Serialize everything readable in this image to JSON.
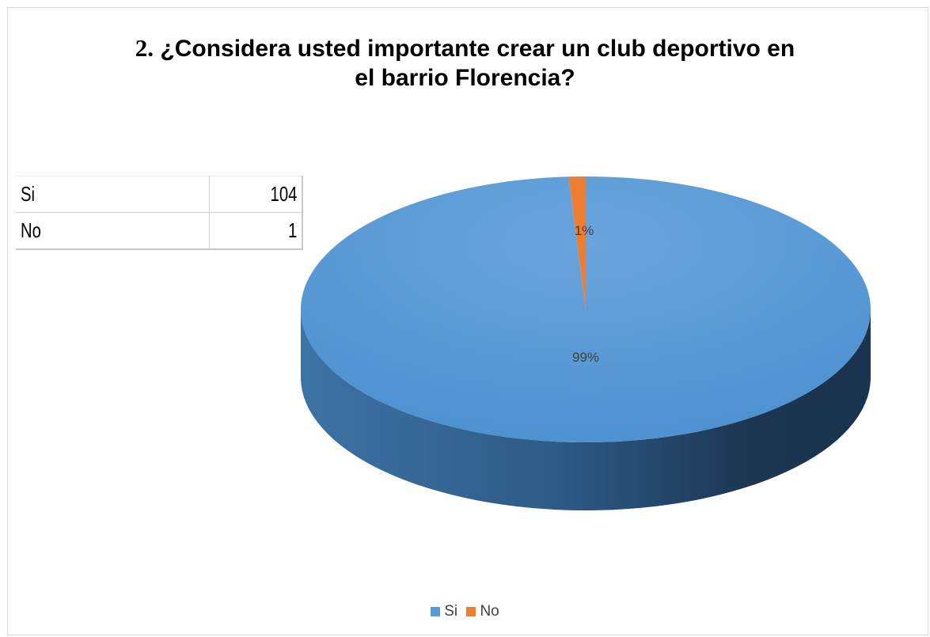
{
  "chart_data": {
    "type": "pie",
    "title_number": "2.",
    "title_line1": "¿Considera usted importante crear un club deportivo en",
    "title_line2": "el barrio Florencia?",
    "categories": [
      "Si",
      "No"
    ],
    "values": [
      104,
      1
    ],
    "percent_labels": [
      "99%",
      "1%"
    ],
    "colors": [
      "#5b9bd5",
      "#ed7d31"
    ],
    "legend_position": "bottom",
    "style": "3d"
  },
  "table": {
    "rows": [
      {
        "label": "Si",
        "value": "104"
      },
      {
        "label": "No",
        "value": "1"
      }
    ]
  },
  "legend": [
    {
      "label": "Si",
      "color": "#5b9bd5"
    },
    {
      "label": "No",
      "color": "#ed7d31"
    }
  ]
}
